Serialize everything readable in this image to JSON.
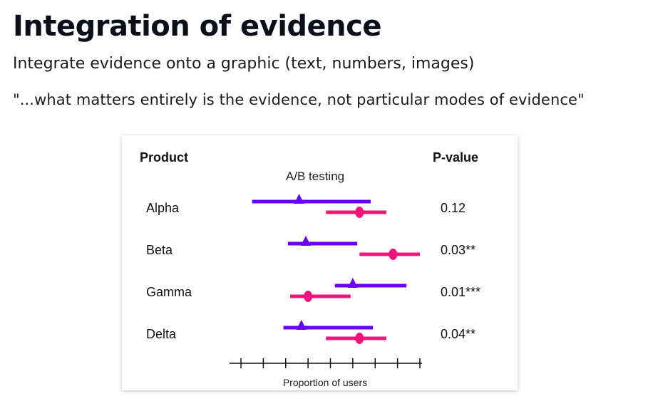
{
  "page": {
    "title": "Integration of evidence",
    "subtitle": "Integrate evidence onto a graphic (text, numbers, images)",
    "quote": "\"...what matters entirely is the evidence, not particular modes of evidence\""
  },
  "chart_data": {
    "type": "forest",
    "title": "A/B testing",
    "row_header": "Product",
    "value_header": "P-value",
    "xlabel": "Proportion of  users",
    "xlim": [
      0,
      8
    ],
    "ticks": [
      0,
      1,
      2,
      3,
      4,
      5,
      6,
      7,
      8
    ],
    "colors": {
      "A": "#6a00f4",
      "B": "#f0157a"
    },
    "series": [
      {
        "key": "A",
        "marker": "triangle"
      },
      {
        "key": "B",
        "marker": "circle"
      }
    ],
    "rows": [
      {
        "label": "Alpha",
        "pvalue": "0.12",
        "A": {
          "low": 0.5,
          "point": 2.6,
          "high": 5.8
        },
        "B": {
          "low": 3.8,
          "point": 5.3,
          "high": 6.5
        }
      },
      {
        "label": "Beta",
        "pvalue": "0.03**",
        "A": {
          "low": 2.1,
          "point": 2.9,
          "high": 5.2
        },
        "B": {
          "low": 5.3,
          "point": 6.8,
          "high": 8.0
        }
      },
      {
        "label": "Gamma",
        "pvalue": "0.01***",
        "A": {
          "low": 4.2,
          "point": 5.0,
          "high": 7.4
        },
        "B": {
          "low": 2.2,
          "point": 3.0,
          "high": 4.9
        }
      },
      {
        "label": "Delta",
        "pvalue": "0.04**",
        "A": {
          "low": 1.9,
          "point": 2.7,
          "high": 5.9
        },
        "B": {
          "low": 3.8,
          "point": 5.3,
          "high": 6.5
        }
      }
    ]
  }
}
